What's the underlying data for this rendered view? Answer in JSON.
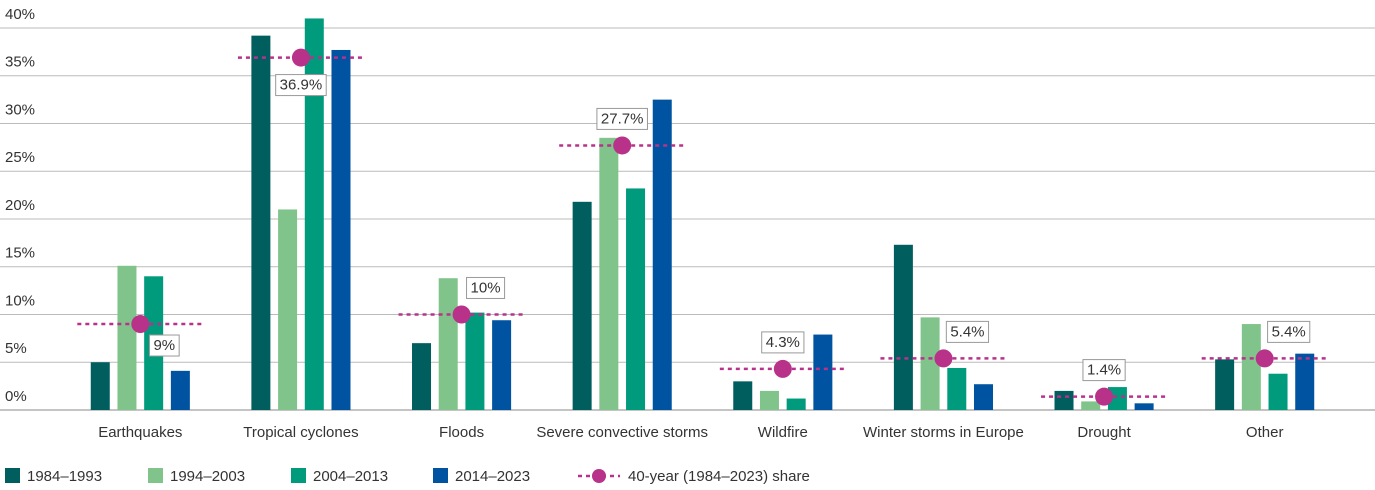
{
  "chart_data": {
    "type": "bar",
    "categories": [
      "Earthquakes",
      "Tropical cyclones",
      "Floods",
      "Severe convective storms",
      "Wildfire",
      "Winter storms in Europe",
      "Drought",
      "Other"
    ],
    "series": [
      {
        "name": "1984–1993",
        "color": "#005f5e",
        "values": [
          5.0,
          39.2,
          7.0,
          21.8,
          3.0,
          17.3,
          2.0,
          5.3
        ]
      },
      {
        "name": "1994–2003",
        "color": "#80c48c",
        "values": [
          15.1,
          21.0,
          13.8,
          28.5,
          2.0,
          9.7,
          0.9,
          9.0
        ]
      },
      {
        "name": "2004–2013",
        "color": "#009a7c",
        "values": [
          14.0,
          41.0,
          10.2,
          23.2,
          1.2,
          4.4,
          2.4,
          3.8
        ]
      },
      {
        "name": "2014–2023",
        "color": "#0053a0",
        "values": [
          4.1,
          37.7,
          9.4,
          32.5,
          7.9,
          2.7,
          0.7,
          5.9
        ]
      }
    ],
    "share": {
      "name": "40-year (1984–2023) share",
      "color": "#b8328a",
      "values": [
        9,
        36.9,
        10,
        27.7,
        4.3,
        5.4,
        1.4,
        5.4
      ],
      "value_labels": [
        "9%",
        "36.9%",
        "10%",
        "27.7%",
        "4.3%",
        "5.4%",
        "1.4%",
        "5.4%"
      ]
    },
    "ylim": [
      0,
      40
    ],
    "yticks": [
      {
        "value": 0,
        "label": "0%"
      },
      {
        "value": 5,
        "label": "5%"
      },
      {
        "value": 10,
        "label": "10%"
      },
      {
        "value": 15,
        "label": "15%"
      },
      {
        "value": 20,
        "label": "20%"
      },
      {
        "value": 25,
        "label": "25%"
      },
      {
        "value": 30,
        "label": "30%"
      },
      {
        "value": 35,
        "label": "35%"
      },
      {
        "value": 40,
        "label": "40%"
      }
    ],
    "grid": true
  }
}
